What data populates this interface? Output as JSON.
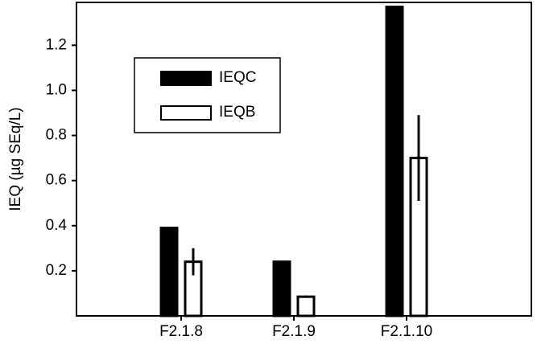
{
  "chart_data": {
    "type": "bar",
    "y_label": "IEQ (µg SEq/L)",
    "categories": [
      "F2.1.8",
      "F2.1.9",
      "F2.1.10"
    ],
    "series": [
      {
        "name": "IEQC",
        "color": "#000000",
        "values": [
          0.39,
          0.24,
          1.37
        ]
      },
      {
        "name": "IEQB",
        "color": "#ffffff",
        "values": [
          0.24,
          0.085,
          0.7
        ],
        "errors": [
          0.06,
          0.005,
          0.19
        ]
      }
    ],
    "ylim": [
      0,
      1.39
    ],
    "yticks": [
      0.2,
      0.4,
      0.6,
      0.8,
      1.0,
      1.2
    ]
  }
}
